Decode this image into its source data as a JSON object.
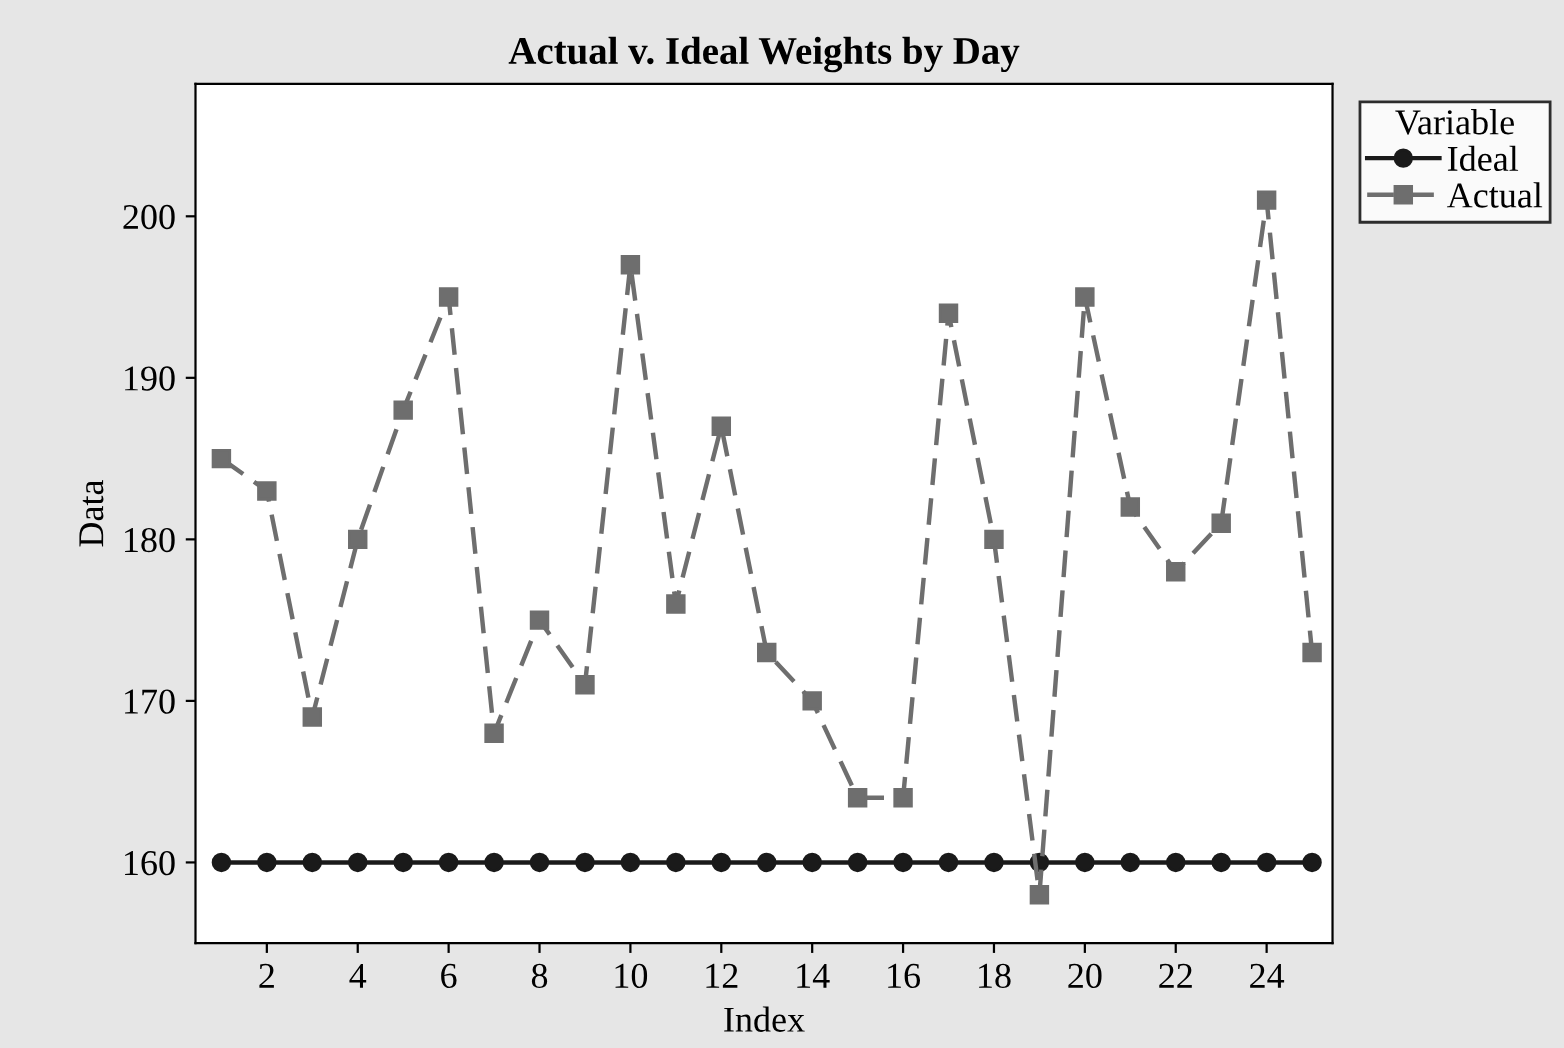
{
  "chart_data": {
    "type": "line",
    "title": "Actual v. Ideal Weights by Day",
    "xlabel": "Index",
    "ylabel": "Data",
    "legend_title": "Variable",
    "x": [
      1,
      2,
      3,
      4,
      5,
      6,
      7,
      8,
      9,
      10,
      11,
      12,
      13,
      14,
      15,
      16,
      17,
      18,
      19,
      20,
      21,
      22,
      23,
      24,
      25
    ],
    "series": [
      {
        "name": "Ideal",
        "color": "#1a1a1a",
        "marker": "circle",
        "line_style": "solid",
        "values": [
          160,
          160,
          160,
          160,
          160,
          160,
          160,
          160,
          160,
          160,
          160,
          160,
          160,
          160,
          160,
          160,
          160,
          160,
          160,
          160,
          160,
          160,
          160,
          160,
          160
        ]
      },
      {
        "name": "Actual",
        "color": "#6e6e6e",
        "marker": "square",
        "line_style": "dashed",
        "values": [
          185,
          183,
          169,
          180,
          188,
          195,
          168,
          175,
          171,
          197,
          176,
          187,
          173,
          170,
          164,
          164,
          194,
          180,
          158,
          195,
          182,
          178,
          181,
          201,
          173
        ]
      }
    ],
    "xlim": [
      0.43,
      25.45
    ],
    "xticks": [
      2,
      4,
      6,
      8,
      10,
      12,
      14,
      16,
      18,
      20,
      22,
      24
    ],
    "ylim": [
      155,
      208.2
    ],
    "yticks": [
      160,
      170,
      180,
      190,
      200
    ],
    "grid": false,
    "legend": "top right"
  }
}
